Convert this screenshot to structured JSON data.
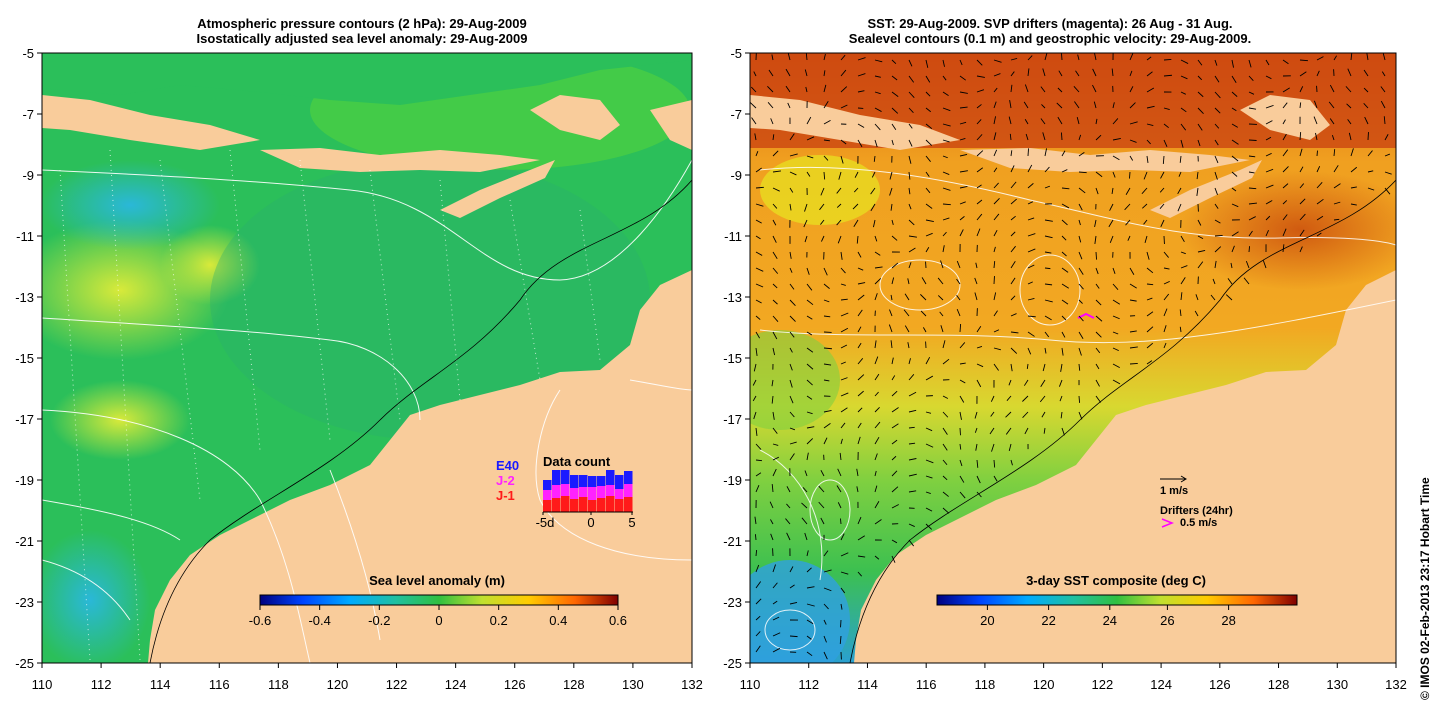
{
  "left_panel": {
    "title_line1": "Atmospheric pressure contours (2 hPa): 29-Aug-2009",
    "title_line2": "Isostatically adjusted sea level anomaly: 29-Aug-2009",
    "colorbar_label": "Sea level anomaly (m)",
    "colorbar_ticks": [
      "-0.6",
      "-0.4",
      "-0.2",
      "0",
      "0.2",
      "0.4",
      "0.6"
    ],
    "colors": {
      "ocean": "#2bbf5a",
      "land": "#f9cc9b",
      "high_anomaly": "#c8e63a",
      "low_anomaly": "#38c8c8"
    },
    "data_count": {
      "title": "Data count",
      "legend": [
        {
          "label": "E40",
          "color": "#1a1aff"
        },
        {
          "label": "J-2",
          "color": "#ff22ff"
        },
        {
          "label": "J-1",
          "color": "#ff1a1a"
        }
      ],
      "ticks": [
        "-5d",
        "0",
        "5"
      ]
    }
  },
  "right_panel": {
    "title_line1": "SST: 29-Aug-2009. SVP drifters (magenta): 26 Aug - 31 Aug.",
    "title_line2": "Sealevel contours (0.1 m) and geostrophic velocity: 29-Aug-2009.",
    "colorbar_label": "3-day SST composite (deg C)",
    "colorbar_ticks": [
      "20",
      "22",
      "24",
      "26",
      "28"
    ],
    "legend_velocity": "1 m/s",
    "legend_drifters": "Drifters (24hr)",
    "legend_drifter_speed": "0.5 m/s",
    "colors": {
      "warm": "#d84a10",
      "mid": "#f5a020",
      "cool": "#3fc040",
      "land": "#f9cc9b",
      "drifter": "#ff00ff"
    }
  },
  "axes": {
    "lon_ticks": [
      "110",
      "112",
      "114",
      "116",
      "118",
      "120",
      "122",
      "124",
      "126",
      "128",
      "130",
      "132"
    ],
    "lat_ticks": [
      "-5",
      "-7",
      "-9",
      "-11",
      "-13",
      "-15",
      "-17",
      "-19",
      "-21",
      "-23",
      "-25"
    ]
  },
  "credit": "© IMOS 02-Feb-2013 23:17 Hobart Time"
}
